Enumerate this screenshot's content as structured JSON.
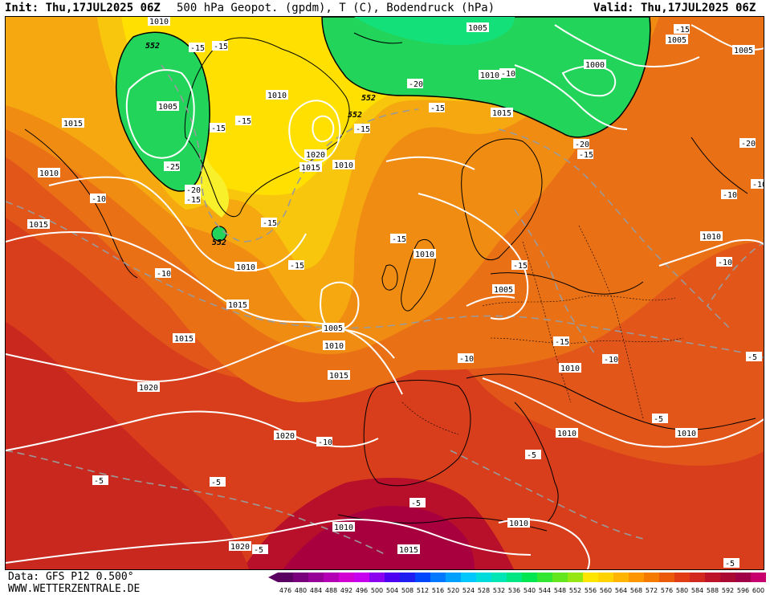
{
  "header": {
    "init": "Init: Thu,17JUL2025 06Z",
    "title": "500 hPa Geopot. (gpdm), T (C), Bodendruck (hPa)",
    "valid": "Valid: Thu,17JUL2025 06Z"
  },
  "footer": {
    "source": "Data: GFS P12 0.500°",
    "site": "WWW.WETTERZENTRALE.DE"
  },
  "colors": {
    "geopot_552_low": "#1fd455",
    "geopot_560": "#ffe600",
    "geopot_568": "#f0a010",
    "geopot_576": "#e86a12",
    "geopot_584": "#d23a1e",
    "geopot_592": "#b8102a",
    "geopot_596": "#a80040"
  },
  "map": {
    "geopot_labels": [
      "552",
      "552",
      "552",
      "552"
    ],
    "pressure_labels": [
      "1010",
      "1005",
      "1015",
      "1010",
      "1015",
      "1005",
      "1000",
      "1005",
      "1010",
      "1015",
      "1005",
      "1010",
      "1020",
      "1015",
      "1010",
      "1010",
      "1015",
      "1010",
      "1005",
      "1015",
      "1010",
      "1005",
      "1010",
      "1015",
      "1010",
      "1020",
      "1020",
      "1010",
      "1010",
      "1010",
      "1015",
      "1020",
      "1010"
    ],
    "temp_labels": [
      "-15",
      "-15",
      "-20",
      "-15",
      "-15",
      "-25",
      "-20",
      "-15",
      "-15",
      "-15",
      "-15",
      "-20",
      "-15",
      "-15",
      "-20",
      "-15",
      "-15",
      "-10",
      "-10",
      "-10",
      "-10",
      "-15",
      "-10",
      "-10",
      "-10",
      "-5",
      "-5",
      "-5",
      "-5",
      "-5",
      "-5",
      "-5",
      "-10",
      "-10",
      "-5",
      "-15"
    ]
  },
  "scale": {
    "ticks": [
      "476",
      "480",
      "484",
      "488",
      "492",
      "496",
      "500",
      "504",
      "508",
      "512",
      "516",
      "520",
      "524",
      "528",
      "532",
      "536",
      "540",
      "544",
      "548",
      "552",
      "556",
      "560",
      "564",
      "568",
      "572",
      "576",
      "580",
      "584",
      "588",
      "592",
      "596",
      "600"
    ],
    "colors": [
      "#5a0060",
      "#78007c",
      "#960096",
      "#b400b4",
      "#d200d2",
      "#c800f0",
      "#8c00f0",
      "#5000f0",
      "#1e1ef0",
      "#0046ff",
      "#0078ff",
      "#00a0ff",
      "#00c8ff",
      "#00dcdc",
      "#00e6b4",
      "#00e682",
      "#00e650",
      "#32e632",
      "#64e61e",
      "#96e614",
      "#ffe600",
      "#ffd200",
      "#ffb400",
      "#ff9600",
      "#f57a00",
      "#eb5a0a",
      "#e13c14",
      "#d2281e",
      "#be1428",
      "#aa0a32",
      "#a00046",
      "#c8006e"
    ]
  }
}
